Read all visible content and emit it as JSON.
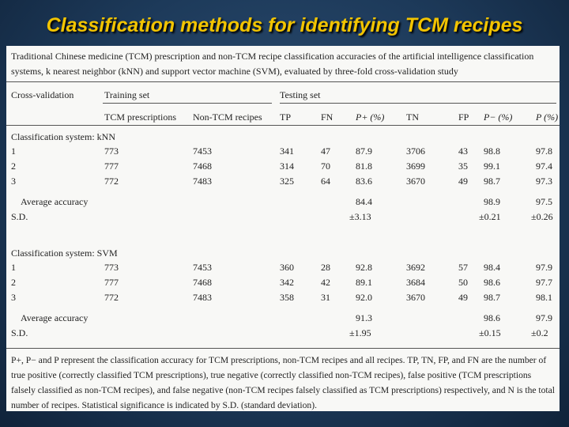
{
  "slide_title": "Classification methods for identifying TCM recipes",
  "table": {
    "caption": "Traditional Chinese medicine (TCM) prescription and non-TCM recipe classification accuracies of the artificial intelligence classification systems, k nearest neighbor (kNN) and support vector machine (SVM), evaluated by three-fold cross-validation study",
    "header": {
      "cross_validation": "Cross-validation",
      "training_set": "Training set",
      "testing_set": "Testing set",
      "columns": [
        "TCM prescriptions",
        "Non-TCM recipes",
        "TP",
        "FN",
        "P+ (%)",
        "TN",
        "FP",
        "P− (%)",
        "P (%)"
      ]
    },
    "sections": [
      {
        "label": "Classification system: kNN",
        "rows": [
          [
            "1",
            "773",
            "7453",
            "341",
            "47",
            "87.9",
            "3706",
            "43",
            "98.8",
            "97.8"
          ],
          [
            "2",
            "777",
            "7468",
            "314",
            "70",
            "81.8",
            "3699",
            "35",
            "99.1",
            "97.4"
          ],
          [
            "3",
            "772",
            "7483",
            "325",
            "64",
            "83.6",
            "3670",
            "49",
            "98.7",
            "97.3"
          ]
        ],
        "average_label": "Average accuracy",
        "average": {
          "p_plus": "84.4",
          "p_minus": "98.9",
          "p": "97.5"
        },
        "sd_label": "S.D.",
        "sd": {
          "p_plus": "±3.13",
          "p_minus": "±0.21",
          "p": "±0.26"
        }
      },
      {
        "label": "Classification system: SVM",
        "rows": [
          [
            "1",
            "773",
            "7453",
            "360",
            "28",
            "92.8",
            "3692",
            "57",
            "98.4",
            "97.9"
          ],
          [
            "2",
            "777",
            "7468",
            "342",
            "42",
            "89.1",
            "3684",
            "50",
            "98.6",
            "97.7"
          ],
          [
            "3",
            "772",
            "7483",
            "358",
            "31",
            "92.0",
            "3670",
            "49",
            "98.7",
            "98.1"
          ]
        ],
        "average_label": "Average accuracy",
        "average": {
          "p_plus": "91.3",
          "p_minus": "98.6",
          "p": "97.9"
        },
        "sd_label": "S.D.",
        "sd": {
          "p_plus": "±1.95",
          "p_minus": "±0.15",
          "p": "±0.2"
        }
      }
    ],
    "footnote": "P+, P− and P represent the classification accuracy for TCM prescriptions, non-TCM recipes and all recipes. TP, TN, FP, and FN are the number of true positive (correctly classified TCM prescriptions), true negative (correctly classified non-TCM recipes), false positive (TCM prescriptions falsely classified as non-TCM recipes), and false negative (non-TCM recipes falsely classified as TCM prescriptions) respectively, and N is the total number of recipes. Statistical significance is indicated by S.D. (standard deviation)."
  }
}
